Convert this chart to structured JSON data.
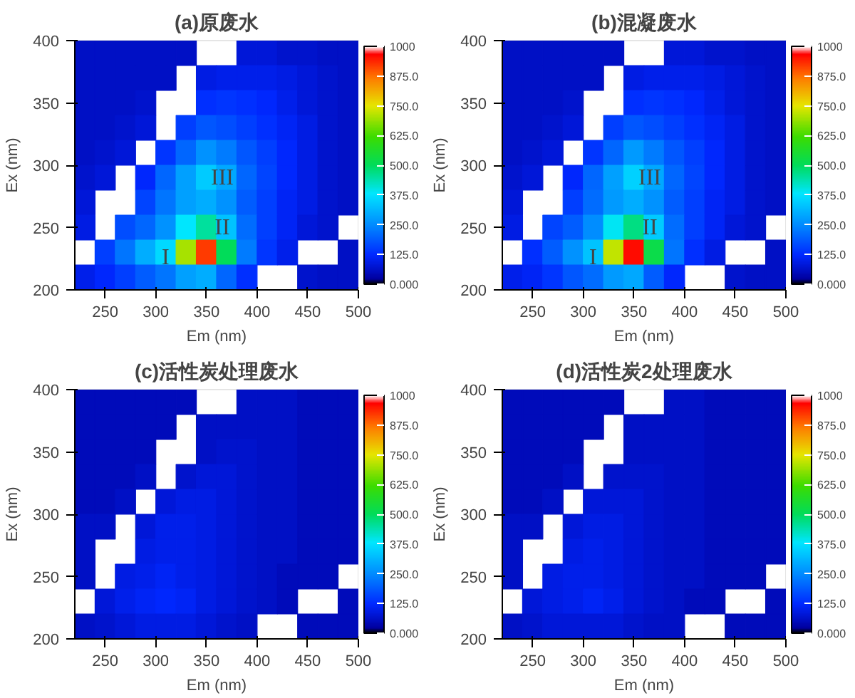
{
  "chart_data": [
    {
      "type": "heatmap",
      "title": "(a)原废水",
      "xlabel": "Em (nm)",
      "ylabel": "Ex (nm)",
      "x": [
        230,
        250,
        270,
        290,
        310,
        330,
        350,
        370,
        390,
        410,
        430,
        450,
        470,
        490
      ],
      "y": [
        390,
        370,
        350,
        330,
        310,
        290,
        270,
        250,
        230,
        210
      ],
      "xlim": [
        220,
        500
      ],
      "ylim": [
        200,
        400
      ],
      "xticks": [
        250,
        300,
        350,
        400,
        450,
        500
      ],
      "yticks": [
        200,
        250,
        300,
        350,
        400
      ],
      "clim": [
        0,
        1000
      ],
      "cticks": [
        {
          "value": 0,
          "label": "0.000"
        },
        {
          "value": 125,
          "label": "125.0"
        },
        {
          "value": 250,
          "label": "250.0"
        },
        {
          "value": 375,
          "label": "375.0"
        },
        {
          "value": 500,
          "label": "500.0"
        },
        {
          "value": 625,
          "label": "625.0"
        },
        {
          "value": 750,
          "label": "750.0"
        },
        {
          "value": 875,
          "label": "875.0"
        },
        {
          "value": 1000,
          "label": "1000"
        }
      ],
      "cells": [
        [
          60,
          60,
          60,
          60,
          60,
          60,
          null,
          null,
          80,
          80,
          70,
          70,
          60,
          60
        ],
        [
          60,
          60,
          60,
          60,
          60,
          null,
          90,
          100,
          100,
          100,
          90,
          80,
          70,
          60
        ],
        [
          60,
          60,
          60,
          70,
          null,
          null,
          130,
          140,
          130,
          120,
          100,
          80,
          70,
          60
        ],
        [
          60,
          60,
          70,
          80,
          null,
          150,
          180,
          170,
          150,
          130,
          110,
          90,
          70,
          60
        ],
        [
          60,
          70,
          80,
          null,
          140,
          200,
          260,
          230,
          180,
          150,
          120,
          90,
          70,
          60
        ],
        [
          70,
          80,
          null,
          120,
          200,
          280,
          340,
          290,
          200,
          160,
          120,
          90,
          70,
          60
        ],
        [
          80,
          null,
          null,
          160,
          220,
          280,
          300,
          260,
          190,
          150,
          110,
          90,
          70,
          60
        ],
        [
          90,
          null,
          170,
          200,
          260,
          380,
          450,
          330,
          210,
          150,
          110,
          80,
          70,
          null
        ],
        [
          null,
          150,
          220,
          300,
          360,
          700,
          920,
          500,
          230,
          140,
          100,
          null,
          null,
          60
        ],
        [
          100,
          120,
          150,
          190,
          220,
          280,
          300,
          200,
          130,
          null,
          null,
          70,
          60,
          60
        ]
      ],
      "annotations": [
        "I",
        "II",
        "III"
      ]
    },
    {
      "type": "heatmap",
      "title": "(b)混凝废水",
      "xlabel": "Em (nm)",
      "ylabel": "Ex (nm)",
      "x": [
        230,
        250,
        270,
        290,
        310,
        330,
        350,
        370,
        390,
        410,
        430,
        450,
        470,
        490
      ],
      "y": [
        390,
        370,
        350,
        330,
        310,
        290,
        270,
        250,
        230,
        210
      ],
      "xlim": [
        220,
        500
      ],
      "ylim": [
        200,
        400
      ],
      "xticks": [
        250,
        300,
        350,
        400,
        450,
        500
      ],
      "yticks": [
        200,
        250,
        300,
        350,
        400
      ],
      "clim": [
        0,
        1000
      ],
      "cticks": [
        {
          "value": 0,
          "label": "0.000"
        },
        {
          "value": 125,
          "label": "125.0"
        },
        {
          "value": 250,
          "label": "250.0"
        },
        {
          "value": 375,
          "label": "375.0"
        },
        {
          "value": 500,
          "label": "500.0"
        },
        {
          "value": 625,
          "label": "625.0"
        },
        {
          "value": 750,
          "label": "750.0"
        },
        {
          "value": 875,
          "label": "875.0"
        },
        {
          "value": 1000,
          "label": "1000"
        }
      ],
      "cells": [
        [
          60,
          60,
          60,
          60,
          60,
          60,
          null,
          null,
          80,
          80,
          70,
          70,
          60,
          60
        ],
        [
          60,
          60,
          60,
          60,
          60,
          null,
          90,
          100,
          100,
          100,
          90,
          80,
          70,
          60
        ],
        [
          60,
          60,
          60,
          70,
          null,
          null,
          130,
          140,
          130,
          120,
          100,
          80,
          70,
          60
        ],
        [
          60,
          60,
          70,
          80,
          null,
          150,
          180,
          170,
          150,
          130,
          110,
          90,
          70,
          60
        ],
        [
          60,
          70,
          80,
          null,
          140,
          200,
          270,
          230,
          180,
          150,
          120,
          90,
          70,
          60
        ],
        [
          70,
          80,
          null,
          120,
          200,
          280,
          350,
          290,
          200,
          160,
          120,
          90,
          70,
          60
        ],
        [
          80,
          null,
          null,
          150,
          210,
          270,
          300,
          260,
          190,
          150,
          110,
          90,
          70,
          60
        ],
        [
          90,
          null,
          160,
          190,
          250,
          390,
          470,
          340,
          210,
          150,
          110,
          80,
          70,
          null
        ],
        [
          null,
          130,
          190,
          260,
          330,
          720,
          960,
          520,
          220,
          130,
          90,
          null,
          null,
          60
        ],
        [
          100,
          110,
          140,
          180,
          210,
          270,
          290,
          190,
          120,
          null,
          null,
          70,
          60,
          60
        ]
      ],
      "annotations": [
        "I",
        "II",
        "III"
      ]
    },
    {
      "type": "heatmap",
      "title": "(c)活性炭处理废水",
      "xlabel": "Em (nm)",
      "ylabel": "Ex (nm)",
      "x": [
        230,
        250,
        270,
        290,
        310,
        330,
        350,
        370,
        390,
        410,
        430,
        450,
        470,
        490
      ],
      "y": [
        390,
        370,
        350,
        330,
        310,
        290,
        270,
        250,
        230,
        210
      ],
      "xlim": [
        220,
        500
      ],
      "ylim": [
        200,
        400
      ],
      "xticks": [
        250,
        300,
        350,
        400,
        450,
        500
      ],
      "yticks": [
        200,
        250,
        300,
        350,
        400
      ],
      "clim": [
        0,
        1000
      ],
      "cticks": [
        {
          "value": 0,
          "label": "0.000"
        },
        {
          "value": 125,
          "label": "125.0"
        },
        {
          "value": 250,
          "label": "250.0"
        },
        {
          "value": 375,
          "label": "375.0"
        },
        {
          "value": 500,
          "label": "500.0"
        },
        {
          "value": 625,
          "label": "625.0"
        },
        {
          "value": 750,
          "label": "750.0"
        },
        {
          "value": 875,
          "label": "875.0"
        },
        {
          "value": 1000,
          "label": "1000"
        }
      ],
      "cells": [
        [
          50,
          50,
          50,
          50,
          50,
          50,
          null,
          null,
          60,
          60,
          60,
          50,
          50,
          50
        ],
        [
          50,
          50,
          50,
          50,
          50,
          null,
          60,
          60,
          60,
          60,
          60,
          50,
          50,
          50
        ],
        [
          50,
          50,
          50,
          50,
          null,
          null,
          60,
          70,
          70,
          60,
          60,
          50,
          50,
          50
        ],
        [
          50,
          50,
          50,
          60,
          null,
          70,
          80,
          80,
          70,
          60,
          60,
          50,
          50,
          50
        ],
        [
          50,
          50,
          60,
          null,
          80,
          90,
          90,
          80,
          70,
          60,
          60,
          50,
          50,
          50
        ],
        [
          60,
          60,
          null,
          80,
          100,
          100,
          90,
          80,
          70,
          60,
          60,
          50,
          50,
          50
        ],
        [
          60,
          null,
          null,
          90,
          100,
          100,
          90,
          80,
          70,
          60,
          60,
          50,
          50,
          50
        ],
        [
          60,
          null,
          90,
          100,
          110,
          100,
          90,
          80,
          70,
          60,
          50,
          50,
          50,
          null
        ],
        [
          null,
          80,
          100,
          110,
          120,
          110,
          90,
          80,
          70,
          60,
          50,
          null,
          null,
          50
        ],
        [
          60,
          70,
          80,
          90,
          90,
          90,
          80,
          70,
          60,
          null,
          null,
          50,
          50,
          50
        ]
      ]
    },
    {
      "type": "heatmap",
      "title": "(d)活性炭2处理废水",
      "xlabel": "Em (nm)",
      "ylabel": "Ex (nm)",
      "x": [
        230,
        250,
        270,
        290,
        310,
        330,
        350,
        370,
        390,
        410,
        430,
        450,
        470,
        490
      ],
      "y": [
        390,
        370,
        350,
        330,
        310,
        290,
        270,
        250,
        230,
        210
      ],
      "xlim": [
        220,
        500
      ],
      "ylim": [
        200,
        400
      ],
      "xticks": [
        250,
        300,
        350,
        400,
        450,
        500
      ],
      "yticks": [
        200,
        250,
        300,
        350,
        400
      ],
      "clim": [
        0,
        1000
      ],
      "cticks": [
        {
          "value": 0,
          "label": "0.000"
        },
        {
          "value": 125,
          "label": "125.0"
        },
        {
          "value": 250,
          "label": "250.0"
        },
        {
          "value": 375,
          "label": "375.0"
        },
        {
          "value": 500,
          "label": "500.0"
        },
        {
          "value": 625,
          "label": "625.0"
        },
        {
          "value": 750,
          "label": "750.0"
        },
        {
          "value": 875,
          "label": "875.0"
        },
        {
          "value": 1000,
          "label": "1000"
        }
      ],
      "cells": [
        [
          50,
          50,
          50,
          50,
          50,
          50,
          null,
          null,
          60,
          60,
          50,
          50,
          50,
          50
        ],
        [
          50,
          50,
          50,
          50,
          50,
          null,
          60,
          60,
          60,
          60,
          50,
          50,
          50,
          50
        ],
        [
          50,
          50,
          50,
          50,
          null,
          null,
          60,
          60,
          60,
          60,
          50,
          50,
          50,
          50
        ],
        [
          50,
          50,
          50,
          60,
          null,
          70,
          70,
          70,
          60,
          60,
          50,
          50,
          50,
          50
        ],
        [
          50,
          50,
          60,
          null,
          80,
          80,
          80,
          70,
          60,
          60,
          50,
          50,
          50,
          50
        ],
        [
          60,
          60,
          null,
          80,
          90,
          90,
          80,
          70,
          60,
          60,
          50,
          50,
          50,
          50
        ],
        [
          60,
          null,
          null,
          90,
          100,
          90,
          80,
          70,
          60,
          60,
          50,
          50,
          50,
          50
        ],
        [
          60,
          null,
          90,
          100,
          100,
          90,
          80,
          70,
          60,
          60,
          50,
          50,
          50,
          null
        ],
        [
          null,
          80,
          90,
          100,
          110,
          100,
          80,
          70,
          60,
          50,
          50,
          null,
          null,
          50
        ],
        [
          60,
          70,
          80,
          80,
          80,
          80,
          70,
          60,
          60,
          null,
          null,
          50,
          50,
          50
        ]
      ]
    }
  ]
}
